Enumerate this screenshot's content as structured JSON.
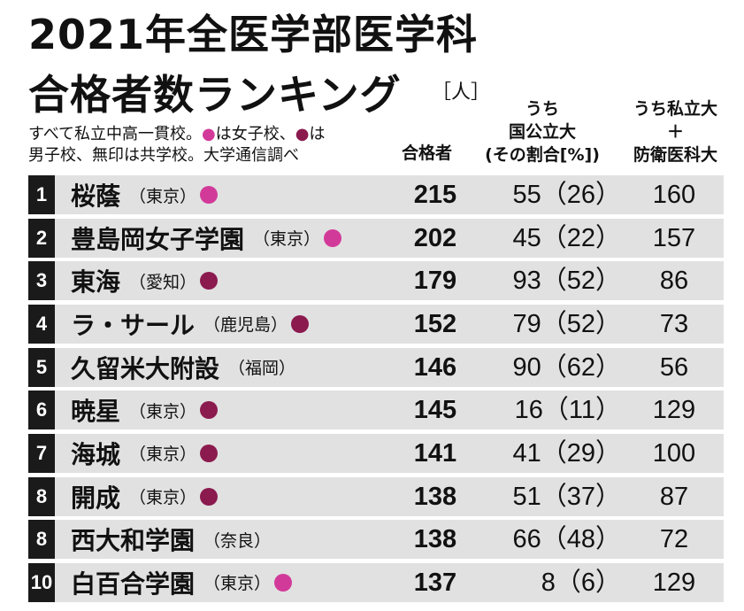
{
  "title": {
    "line1": "2021年全医学部医学科",
    "line2": "合格者数ランキング",
    "unit": "［人］"
  },
  "note": {
    "line1": "すべて私立中高一貫校。●は女子校、●は",
    "line2": "男子校、無印は共学校。大学通信調べ"
  },
  "columns": {
    "total": "合格者",
    "public": {
      "line1": "うち",
      "line2": "国公立大",
      "line3": "(その割合[%])"
    },
    "private": {
      "line1": "うち私立大",
      "line2": "＋",
      "line3": "防衛医科大"
    }
  },
  "colors": {
    "girls": "#d23a99",
    "boys": "#8b1a4e",
    "rank_bg": "#1a1a1a",
    "row_shade": "#e1e1e1"
  },
  "rows": [
    {
      "rank": "1",
      "school": "桜蔭",
      "location": "（東京）",
      "type": "girls",
      "total": "215",
      "public": "55（26）",
      "private": "160"
    },
    {
      "rank": "2",
      "school": "豊島岡女子学園",
      "location": "（東京）",
      "type": "girls",
      "total": "202",
      "public": "45（22）",
      "private": "157"
    },
    {
      "rank": "3",
      "school": "東海",
      "location": "（愛知）",
      "type": "boys",
      "total": "179",
      "public": "93（52）",
      "private": "86"
    },
    {
      "rank": "4",
      "school": "ラ・サール",
      "location": "（鹿児島）",
      "type": "boys",
      "total": "152",
      "public": "79（52）",
      "private": "73"
    },
    {
      "rank": "5",
      "school": "久留米大附設",
      "location": "（福岡）",
      "type": "coed",
      "total": "146",
      "public": "90（62）",
      "private": "56"
    },
    {
      "rank": "6",
      "school": "暁星",
      "location": "（東京）",
      "type": "boys",
      "total": "145",
      "public": "16（11）",
      "private": "129"
    },
    {
      "rank": "7",
      "school": "海城",
      "location": "（東京）",
      "type": "boys",
      "total": "141",
      "public": "41（29）",
      "private": "100"
    },
    {
      "rank": "8",
      "school": "開成",
      "location": "（東京）",
      "type": "boys",
      "total": "138",
      "public": "51（37）",
      "private": "87"
    },
    {
      "rank": "8",
      "school": "西大和学園",
      "location": "（奈良）",
      "type": "coed",
      "total": "138",
      "public": "66（48）",
      "private": "72"
    },
    {
      "rank": "10",
      "school": "白百合学園",
      "location": "（東京）",
      "type": "girls",
      "total": "137",
      "public": "8（6）",
      "private": "129"
    }
  ]
}
